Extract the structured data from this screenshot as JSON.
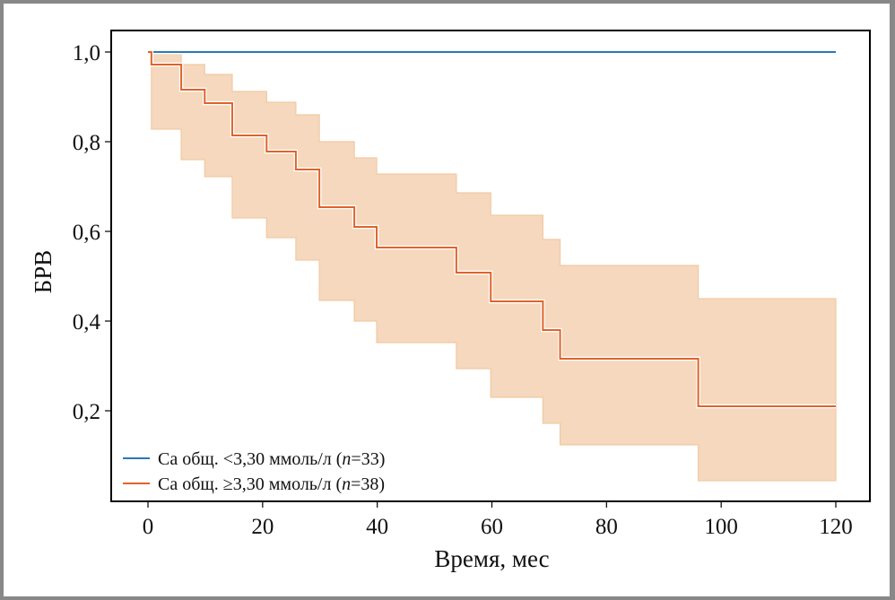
{
  "chart_data": {
    "type": "line",
    "subtype": "kaplan-meier-step",
    "title": "",
    "xlabel": "Время, мес",
    "ylabel": "БРВ",
    "xlim": [
      -6,
      126
    ],
    "ylim": [
      0.0,
      1.03
    ],
    "x_ticks": [
      0,
      20,
      40,
      60,
      80,
      100,
      120
    ],
    "x_tick_labels": [
      "0",
      "20",
      "40",
      "60",
      "80",
      "100",
      "120"
    ],
    "y_ticks": [
      1.0,
      0.8,
      0.6,
      0.4,
      0.2
    ],
    "y_tick_labels": [
      "1,0",
      "0,8",
      "0,6",
      "0,4",
      "0,2"
    ],
    "grid": false,
    "legend_position": "bottom-left",
    "colors": {
      "series_1": "#2a78b8",
      "series_2": "#e0622a",
      "ci_fill": "#f5d8bd",
      "ci_edge": "#f2c9a2"
    },
    "series": [
      {
        "name": "Ca общ. <3,30 ммоль/л (n=33)",
        "legend_parts": [
          "Ca общ. <3,30 ммоль/л (",
          "n",
          "=33)"
        ],
        "color_key": "series_1",
        "steps": [
          [
            0,
            1.0
          ],
          [
            120,
            1.0
          ]
        ]
      },
      {
        "name": "Ca общ. ≥3,30 ммоль/л (n=38)",
        "legend_parts": [
          "Ca общ. ≥3,30 ммоль/л (",
          "n",
          "=38)"
        ],
        "color_key": "series_2",
        "steps": [
          [
            0,
            1.0
          ],
          [
            0.6,
            0.972
          ],
          [
            5.8,
            0.916
          ],
          [
            9.9,
            0.886
          ],
          [
            14.7,
            0.814
          ],
          [
            20.7,
            0.778
          ],
          [
            25.8,
            0.738
          ],
          [
            29.9,
            0.654
          ],
          [
            36.0,
            0.61
          ],
          [
            39.9,
            0.564
          ],
          [
            53.8,
            0.508
          ],
          [
            59.8,
            0.444
          ],
          [
            68.9,
            0.38
          ],
          [
            71.9,
            0.316
          ],
          [
            96.0,
            0.21
          ]
        ],
        "end_time": 120,
        "ci_upper": [
          [
            0.6,
            0.998
          ],
          [
            5.8,
            0.972
          ],
          [
            9.9,
            0.95
          ],
          [
            14.7,
            0.912
          ],
          [
            20.7,
            0.888
          ],
          [
            25.8,
            0.86
          ],
          [
            29.9,
            0.8
          ],
          [
            36.0,
            0.764
          ],
          [
            39.9,
            0.728
          ],
          [
            53.8,
            0.686
          ],
          [
            59.8,
            0.636
          ],
          [
            68.9,
            0.582
          ],
          [
            71.9,
            0.524
          ],
          [
            96.0,
            0.45
          ]
        ],
        "ci_lower": [
          [
            0.6,
            0.828
          ],
          [
            5.8,
            0.76
          ],
          [
            9.9,
            0.722
          ],
          [
            14.7,
            0.63
          ],
          [
            20.7,
            0.586
          ],
          [
            25.8,
            0.536
          ],
          [
            29.9,
            0.446
          ],
          [
            36.0,
            0.4
          ],
          [
            39.9,
            0.352
          ],
          [
            53.8,
            0.294
          ],
          [
            59.8,
            0.23
          ],
          [
            68.9,
            0.172
          ],
          [
            71.9,
            0.124
          ],
          [
            96.0,
            0.044
          ]
        ]
      }
    ]
  }
}
